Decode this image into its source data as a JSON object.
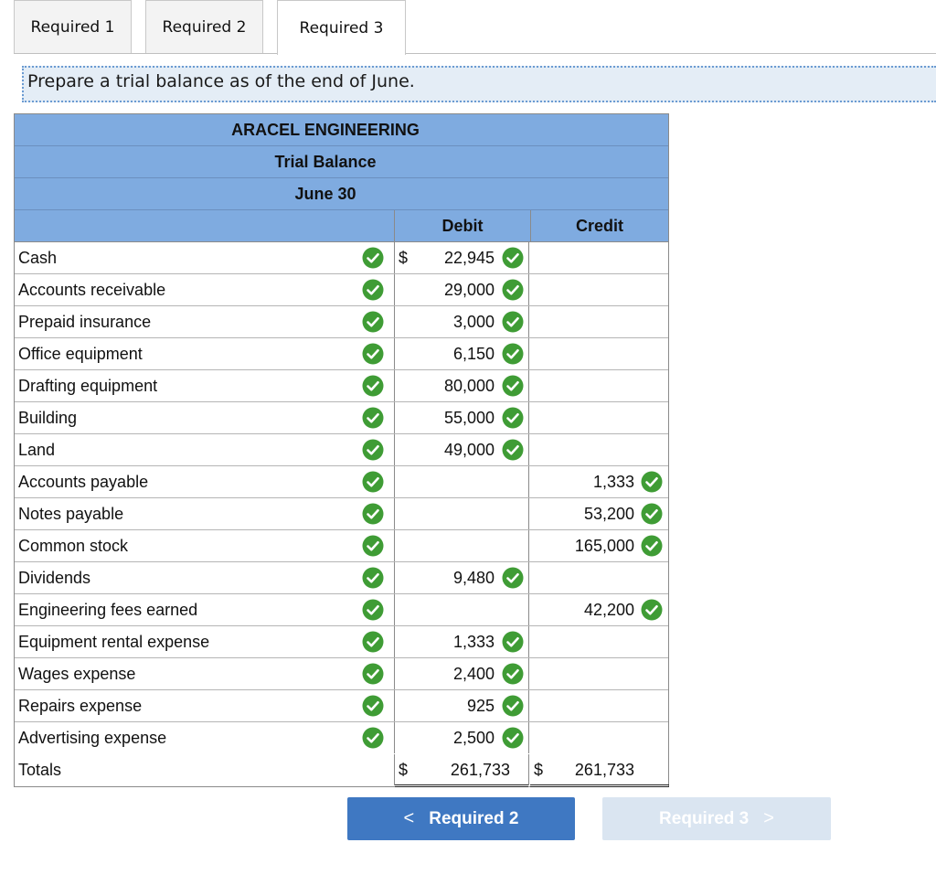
{
  "tabs": [
    {
      "label": "Required 1"
    },
    {
      "label": "Required 2"
    },
    {
      "label": "Required 3",
      "active": true
    }
  ],
  "instruction": "Prepare a trial balance as of the end of June.",
  "table": {
    "company": "ARACEL ENGINEERING",
    "title": "Trial Balance",
    "date": "June 30",
    "debit_header": "Debit",
    "credit_header": "Credit",
    "rows": [
      {
        "account": "Cash",
        "debit_dollar": "$",
        "debit": "22,945",
        "credit": ""
      },
      {
        "account": "Accounts receivable",
        "debit": "29,000",
        "credit": ""
      },
      {
        "account": "Prepaid insurance",
        "debit": "3,000",
        "credit": ""
      },
      {
        "account": "Office equipment",
        "debit": "6,150",
        "credit": ""
      },
      {
        "account": "Drafting equipment",
        "debit": "80,000",
        "credit": ""
      },
      {
        "account": "Building",
        "debit": "55,000",
        "credit": ""
      },
      {
        "account": "Land",
        "debit": "49,000",
        "credit": ""
      },
      {
        "account": "Accounts payable",
        "debit": "",
        "credit": "1,333"
      },
      {
        "account": "Notes payable",
        "debit": "",
        "credit": "53,200"
      },
      {
        "account": "Common stock",
        "debit": "",
        "credit": "165,000"
      },
      {
        "account": "Dividends",
        "debit": "9,480",
        "credit": ""
      },
      {
        "account": "Engineering fees earned",
        "debit": "",
        "credit": "42,200"
      },
      {
        "account": "Equipment rental expense",
        "debit": "1,333",
        "credit": ""
      },
      {
        "account": "Wages expense",
        "debit": "2,400",
        "credit": ""
      },
      {
        "account": "Repairs expense",
        "debit": "925",
        "credit": ""
      },
      {
        "account": "Advertising expense",
        "debit": "2,500",
        "credit": ""
      }
    ],
    "totals": {
      "label": "Totals",
      "debit_dollar": "$",
      "debit": "261,733",
      "credit_dollar": "$",
      "credit": "261,733"
    }
  },
  "nav": {
    "prev_label": "Required 2",
    "next_label": "Required 3",
    "prev_arrow": "<",
    "next_arrow": ">"
  },
  "colors": {
    "header_blue": "#7fabe0",
    "check_green": "#3f9c35",
    "button_blue": "#3f78c2",
    "button_disabled": "#dae5f1"
  }
}
